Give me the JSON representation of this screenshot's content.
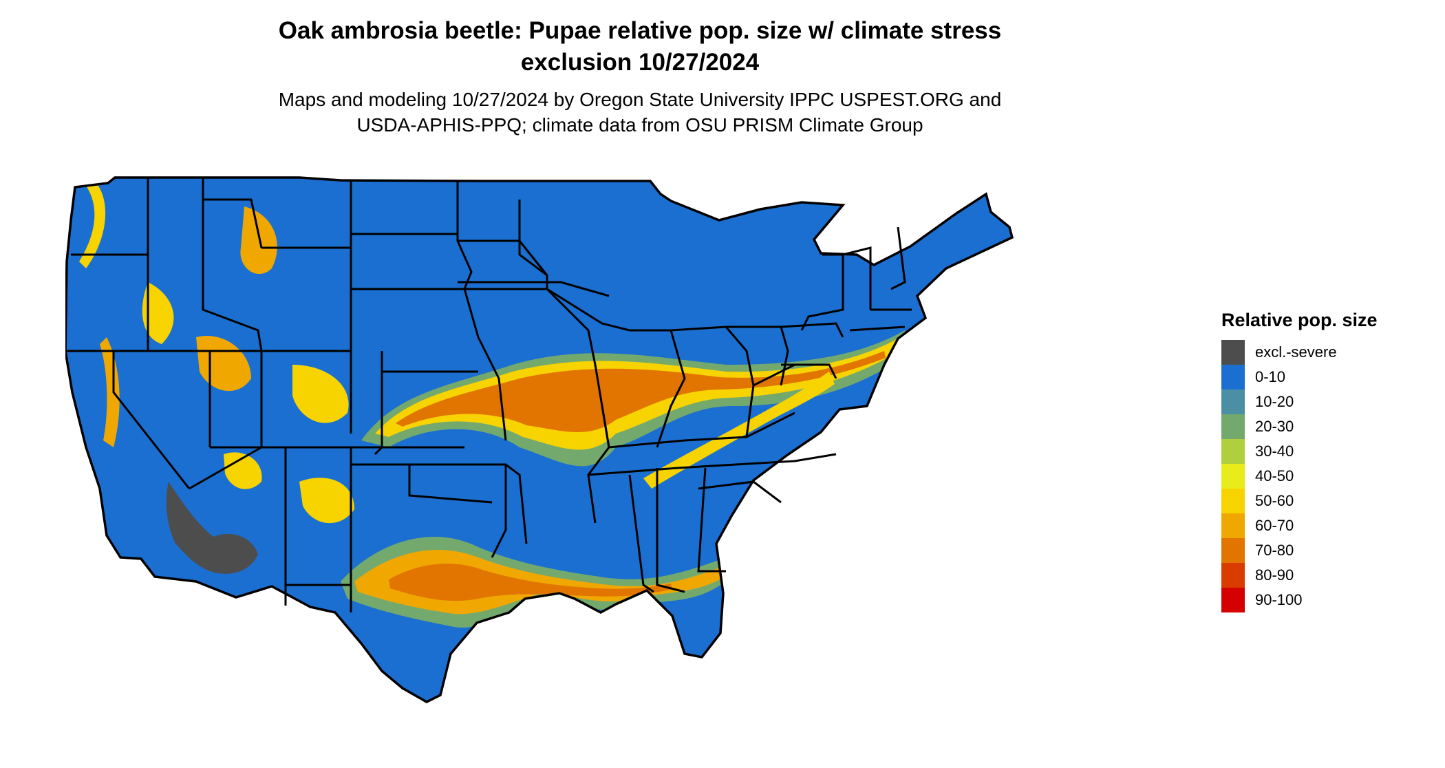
{
  "title_line1": "Oak ambrosia beetle: Pupae relative pop. size w/ climate stress",
  "title_line2": "exclusion 10/27/2024",
  "subtitle_line1": "Maps and modeling 10/27/2024 by Oregon State University IPPC USPEST.ORG and",
  "subtitle_line2": "USDA-APHIS-PPQ; climate data from OSU PRISM Climate Group",
  "map": {
    "region": "Contiguous United States",
    "background_color": "#1a6fd1",
    "border_color": "#000000"
  },
  "legend": {
    "title": "Relative pop. size",
    "items": [
      {
        "label": "excl.-severe",
        "color": "#4d4d4d"
      },
      {
        "label": "0-10",
        "color": "#1a6fd1"
      },
      {
        "label": "10-20",
        "color": "#4a8fa3"
      },
      {
        "label": "20-30",
        "color": "#74a96e"
      },
      {
        "label": "30-40",
        "color": "#b0cf3e"
      },
      {
        "label": "40-50",
        "color": "#e8ec1a"
      },
      {
        "label": "50-60",
        "color": "#f7d400"
      },
      {
        "label": "60-70",
        "color": "#f0a800"
      },
      {
        "label": "70-80",
        "color": "#e27500"
      },
      {
        "label": "80-90",
        "color": "#da3c00"
      },
      {
        "label": "90-100",
        "color": "#d40000"
      }
    ]
  }
}
